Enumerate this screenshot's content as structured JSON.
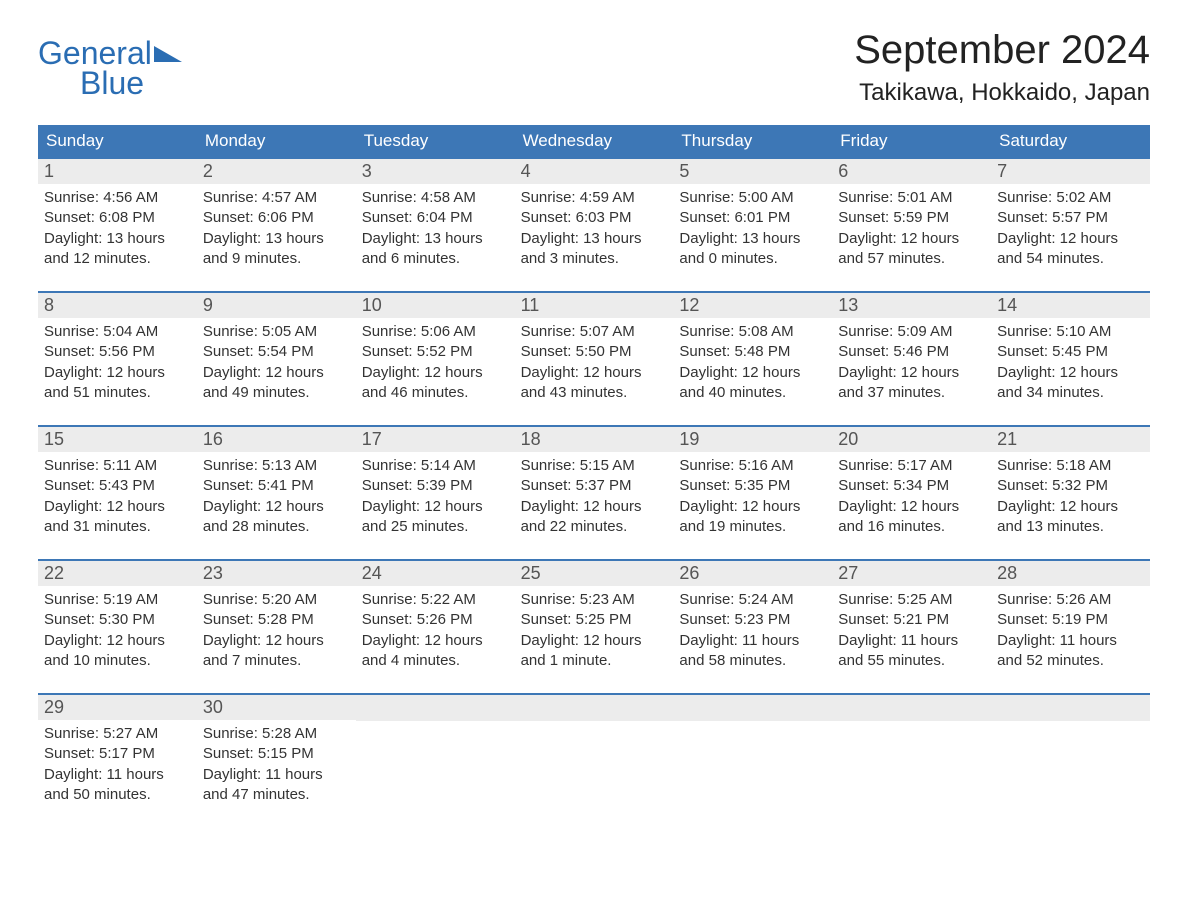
{
  "brand": {
    "line1": "General",
    "line2": "Blue",
    "color": "#2a6db3"
  },
  "title": "September 2024",
  "location": "Takikawa, Hokkaido, Japan",
  "colors": {
    "header_bg": "#3d77b6",
    "header_text": "#ffffff",
    "daybar_bg": "#ececec",
    "week_border": "#3d77b6",
    "body_text": "#333333",
    "page_bg": "#ffffff"
  },
  "days_of_week": [
    "Sunday",
    "Monday",
    "Tuesday",
    "Wednesday",
    "Thursday",
    "Friday",
    "Saturday"
  ],
  "weeks": [
    [
      {
        "n": "1",
        "sunrise": "Sunrise: 4:56 AM",
        "sunset": "Sunset: 6:08 PM",
        "daylight": "Daylight: 13 hours and 12 minutes."
      },
      {
        "n": "2",
        "sunrise": "Sunrise: 4:57 AM",
        "sunset": "Sunset: 6:06 PM",
        "daylight": "Daylight: 13 hours and 9 minutes."
      },
      {
        "n": "3",
        "sunrise": "Sunrise: 4:58 AM",
        "sunset": "Sunset: 6:04 PM",
        "daylight": "Daylight: 13 hours and 6 minutes."
      },
      {
        "n": "4",
        "sunrise": "Sunrise: 4:59 AM",
        "sunset": "Sunset: 6:03 PM",
        "daylight": "Daylight: 13 hours and 3 minutes."
      },
      {
        "n": "5",
        "sunrise": "Sunrise: 5:00 AM",
        "sunset": "Sunset: 6:01 PM",
        "daylight": "Daylight: 13 hours and 0 minutes."
      },
      {
        "n": "6",
        "sunrise": "Sunrise: 5:01 AM",
        "sunset": "Sunset: 5:59 PM",
        "daylight": "Daylight: 12 hours and 57 minutes."
      },
      {
        "n": "7",
        "sunrise": "Sunrise: 5:02 AM",
        "sunset": "Sunset: 5:57 PM",
        "daylight": "Daylight: 12 hours and 54 minutes."
      }
    ],
    [
      {
        "n": "8",
        "sunrise": "Sunrise: 5:04 AM",
        "sunset": "Sunset: 5:56 PM",
        "daylight": "Daylight: 12 hours and 51 minutes."
      },
      {
        "n": "9",
        "sunrise": "Sunrise: 5:05 AM",
        "sunset": "Sunset: 5:54 PM",
        "daylight": "Daylight: 12 hours and 49 minutes."
      },
      {
        "n": "10",
        "sunrise": "Sunrise: 5:06 AM",
        "sunset": "Sunset: 5:52 PM",
        "daylight": "Daylight: 12 hours and 46 minutes."
      },
      {
        "n": "11",
        "sunrise": "Sunrise: 5:07 AM",
        "sunset": "Sunset: 5:50 PM",
        "daylight": "Daylight: 12 hours and 43 minutes."
      },
      {
        "n": "12",
        "sunrise": "Sunrise: 5:08 AM",
        "sunset": "Sunset: 5:48 PM",
        "daylight": "Daylight: 12 hours and 40 minutes."
      },
      {
        "n": "13",
        "sunrise": "Sunrise: 5:09 AM",
        "sunset": "Sunset: 5:46 PM",
        "daylight": "Daylight: 12 hours and 37 minutes."
      },
      {
        "n": "14",
        "sunrise": "Sunrise: 5:10 AM",
        "sunset": "Sunset: 5:45 PM",
        "daylight": "Daylight: 12 hours and 34 minutes."
      }
    ],
    [
      {
        "n": "15",
        "sunrise": "Sunrise: 5:11 AM",
        "sunset": "Sunset: 5:43 PM",
        "daylight": "Daylight: 12 hours and 31 minutes."
      },
      {
        "n": "16",
        "sunrise": "Sunrise: 5:13 AM",
        "sunset": "Sunset: 5:41 PM",
        "daylight": "Daylight: 12 hours and 28 minutes."
      },
      {
        "n": "17",
        "sunrise": "Sunrise: 5:14 AM",
        "sunset": "Sunset: 5:39 PM",
        "daylight": "Daylight: 12 hours and 25 minutes."
      },
      {
        "n": "18",
        "sunrise": "Sunrise: 5:15 AM",
        "sunset": "Sunset: 5:37 PM",
        "daylight": "Daylight: 12 hours and 22 minutes."
      },
      {
        "n": "19",
        "sunrise": "Sunrise: 5:16 AM",
        "sunset": "Sunset: 5:35 PM",
        "daylight": "Daylight: 12 hours and 19 minutes."
      },
      {
        "n": "20",
        "sunrise": "Sunrise: 5:17 AM",
        "sunset": "Sunset: 5:34 PM",
        "daylight": "Daylight: 12 hours and 16 minutes."
      },
      {
        "n": "21",
        "sunrise": "Sunrise: 5:18 AM",
        "sunset": "Sunset: 5:32 PM",
        "daylight": "Daylight: 12 hours and 13 minutes."
      }
    ],
    [
      {
        "n": "22",
        "sunrise": "Sunrise: 5:19 AM",
        "sunset": "Sunset: 5:30 PM",
        "daylight": "Daylight: 12 hours and 10 minutes."
      },
      {
        "n": "23",
        "sunrise": "Sunrise: 5:20 AM",
        "sunset": "Sunset: 5:28 PM",
        "daylight": "Daylight: 12 hours and 7 minutes."
      },
      {
        "n": "24",
        "sunrise": "Sunrise: 5:22 AM",
        "sunset": "Sunset: 5:26 PM",
        "daylight": "Daylight: 12 hours and 4 minutes."
      },
      {
        "n": "25",
        "sunrise": "Sunrise: 5:23 AM",
        "sunset": "Sunset: 5:25 PM",
        "daylight": "Daylight: 12 hours and 1 minute."
      },
      {
        "n": "26",
        "sunrise": "Sunrise: 5:24 AM",
        "sunset": "Sunset: 5:23 PM",
        "daylight": "Daylight: 11 hours and 58 minutes."
      },
      {
        "n": "27",
        "sunrise": "Sunrise: 5:25 AM",
        "sunset": "Sunset: 5:21 PM",
        "daylight": "Daylight: 11 hours and 55 minutes."
      },
      {
        "n": "28",
        "sunrise": "Sunrise: 5:26 AM",
        "sunset": "Sunset: 5:19 PM",
        "daylight": "Daylight: 11 hours and 52 minutes."
      }
    ],
    [
      {
        "n": "29",
        "sunrise": "Sunrise: 5:27 AM",
        "sunset": "Sunset: 5:17 PM",
        "daylight": "Daylight: 11 hours and 50 minutes."
      },
      {
        "n": "30",
        "sunrise": "Sunrise: 5:28 AM",
        "sunset": "Sunset: 5:15 PM",
        "daylight": "Daylight: 11 hours and 47 minutes."
      },
      {
        "empty": true
      },
      {
        "empty": true
      },
      {
        "empty": true
      },
      {
        "empty": true
      },
      {
        "empty": true
      }
    ]
  ]
}
